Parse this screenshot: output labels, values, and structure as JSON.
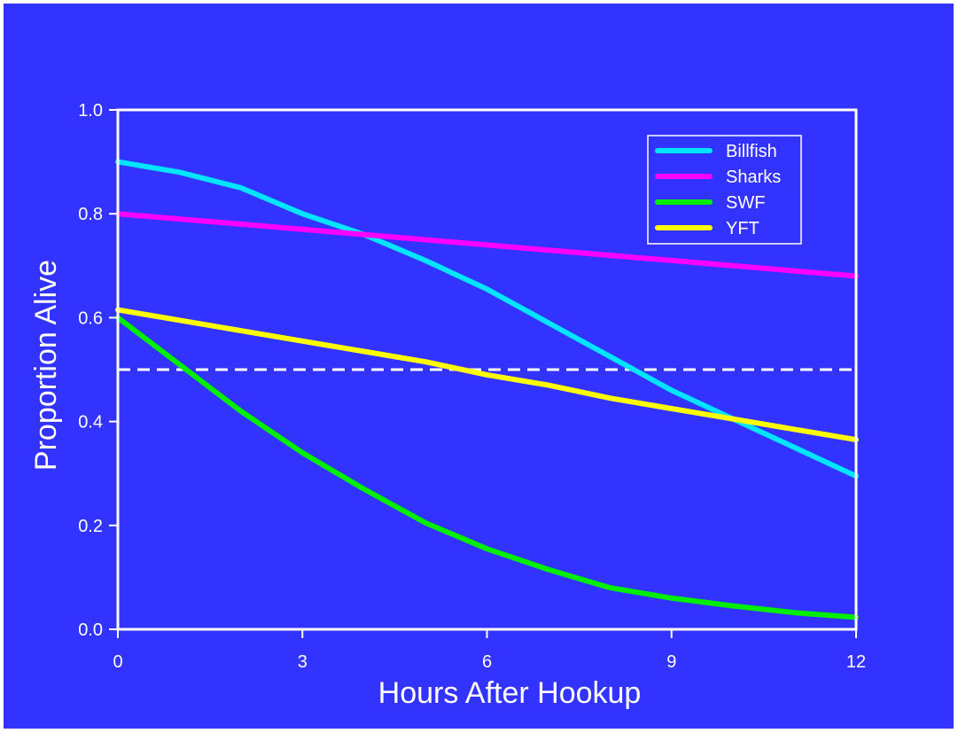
{
  "chart_data": {
    "type": "line",
    "title": "",
    "xlabel": "Hours After Hookup",
    "ylabel": "Proportion Alive",
    "xlim": [
      0,
      12
    ],
    "ylim": [
      0,
      1
    ],
    "xticks": [
      "0",
      "3",
      "6",
      "9",
      "12"
    ],
    "yticks": [
      "0.0",
      "0.2",
      "0.4",
      "0.6",
      "0.8",
      "1.0"
    ],
    "grid": false,
    "legend_position": "top-right",
    "reference_line": {
      "y": 0.5,
      "style": "dashed",
      "color": "#ffffff"
    },
    "x": [
      0,
      1,
      2,
      3,
      4,
      5,
      6,
      7,
      8,
      9,
      10,
      11,
      12
    ],
    "series": [
      {
        "name": "Billfish",
        "color": "#00e5ff",
        "values": [
          0.9,
          0.88,
          0.85,
          0.8,
          0.76,
          0.71,
          0.655,
          0.59,
          0.525,
          0.46,
          0.405,
          0.35,
          0.295
        ]
      },
      {
        "name": "Sharks",
        "color": "#ff00ff",
        "values": [
          0.8,
          0.79,
          0.78,
          0.77,
          0.76,
          0.75,
          0.74,
          0.73,
          0.72,
          0.71,
          0.7,
          0.69,
          0.68
        ]
      },
      {
        "name": "SWF",
        "color": "#00ee00",
        "values": [
          0.6,
          0.51,
          0.42,
          0.34,
          0.27,
          0.205,
          0.155,
          0.115,
          0.08,
          0.06,
          0.045,
          0.032,
          0.023
        ]
      },
      {
        "name": "YFT",
        "color": "#ffff00",
        "values": [
          0.615,
          0.595,
          0.575,
          0.555,
          0.535,
          0.515,
          0.49,
          0.47,
          0.445,
          0.425,
          0.405,
          0.385,
          0.365
        ]
      }
    ]
  }
}
